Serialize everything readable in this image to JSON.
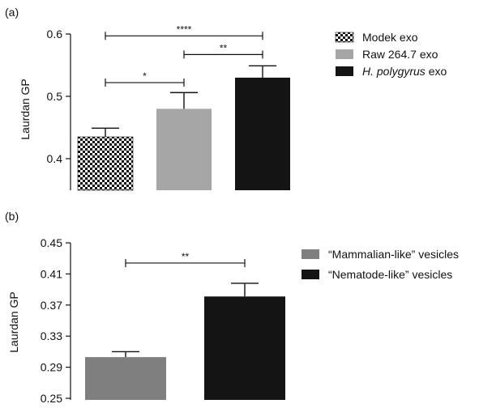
{
  "chart_data": [
    {
      "panel_label": "(a)",
      "type": "bar",
      "ylabel": "Laurdan GP",
      "ylim": [
        0.4,
        0.6
      ],
      "yticks": [
        "0.4",
        "0.5",
        "0.6"
      ],
      "categories": [
        "Modek exo",
        "Raw 264.7 exo",
        "H. polygyrus exo"
      ],
      "values": [
        0.435,
        0.48,
        0.53
      ],
      "errors": [
        0.014,
        0.026,
        0.019
      ],
      "fills": [
        "checker",
        "#a6a6a6",
        "#141414"
      ],
      "legend": [
        {
          "text": "Modek exo",
          "italic": "",
          "suffix": ""
        },
        {
          "text": "Raw 264.7 exo",
          "italic": "",
          "suffix": ""
        },
        {
          "text": "",
          "italic": "H. polygyrus",
          "suffix": " exo"
        }
      ],
      "significance": [
        {
          "from": 0,
          "to": 2,
          "y": 0.597,
          "label": "****"
        },
        {
          "from": 1,
          "to": 2,
          "y": 0.567,
          "label": "**"
        },
        {
          "from": 0,
          "to": 1,
          "y": 0.522,
          "label": "*"
        }
      ]
    },
    {
      "panel_label": "(b)",
      "type": "bar",
      "ylabel": "Laurdan GP",
      "ylim": [
        0.25,
        0.45
      ],
      "yticks": [
        "0.25",
        "0.29",
        "0.33",
        "0.37",
        "0.41",
        "0.45"
      ],
      "categories": [
        "“Mammalian-like” vesicles",
        "“Nematode-like” vesicles"
      ],
      "values": [
        0.303,
        0.381
      ],
      "errors": [
        0.007,
        0.017
      ],
      "fills": [
        "#7f7f7f",
        "#141414"
      ],
      "legend": [
        {
          "text": "“Mammalian-like” vesicles",
          "italic": "",
          "suffix": ""
        },
        {
          "text": "“Nematode-like” vesicles",
          "italic": "",
          "suffix": ""
        }
      ],
      "significance": [
        {
          "from": 0,
          "to": 1,
          "y": 0.424,
          "label": "**"
        }
      ]
    }
  ]
}
